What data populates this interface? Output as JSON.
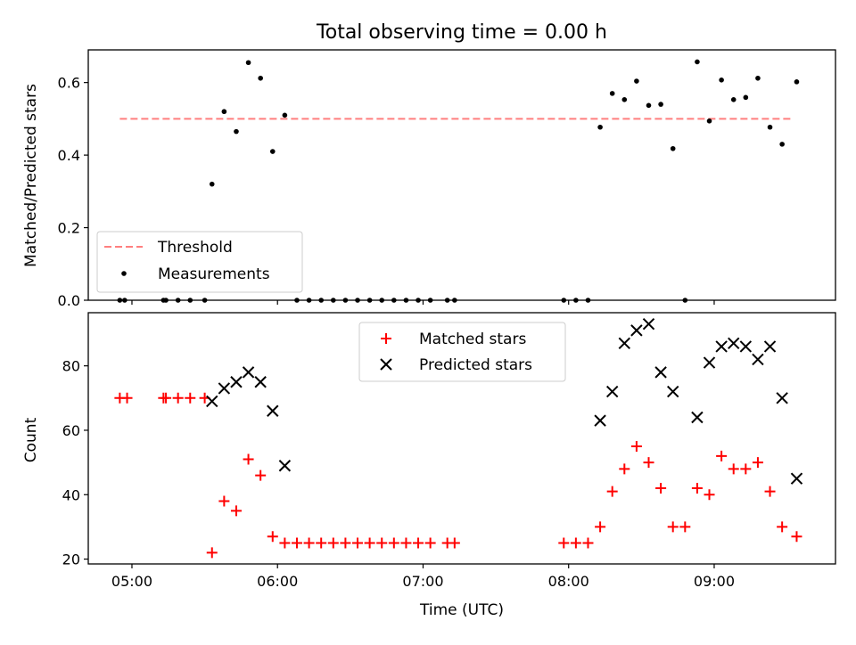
{
  "chart_data": [
    {
      "type": "scatter",
      "title": "Total observing time = 0.00 h",
      "xlabel": "",
      "ylabel": "Matched/Predicted stars",
      "ylim": [
        0.0,
        0.69
      ],
      "yticks": [
        0.0,
        0.2,
        0.4,
        0.6
      ],
      "ytick_labels": [
        "0.0",
        "0.2",
        "0.4",
        "0.6"
      ],
      "legend_placement": "lower-left",
      "threshold": {
        "name": "Threshold",
        "y": 0.5,
        "x": [
          "04:55",
          "09:32"
        ],
        "color": "#ff7f7f"
      },
      "series": [
        {
          "name": "Measurements",
          "color": "#000000",
          "points": [
            [
              "04:55",
              0.0
            ],
            [
              "04:57",
              0.0
            ],
            [
              "05:13",
              0.0
            ],
            [
              "05:14",
              0.0
            ],
            [
              "05:19",
              0.0
            ],
            [
              "05:24",
              0.0
            ],
            [
              "05:30",
              0.0
            ],
            [
              "05:33",
              0.32
            ],
            [
              "05:38",
              0.52
            ],
            [
              "05:43",
              0.465
            ],
            [
              "05:48",
              0.655
            ],
            [
              "05:53",
              0.612
            ],
            [
              "05:58",
              0.41
            ],
            [
              "06:03",
              0.51
            ],
            [
              "06:08",
              0.0
            ],
            [
              "06:13",
              0.0
            ],
            [
              "06:18",
              0.0
            ],
            [
              "06:23",
              0.0
            ],
            [
              "06:28",
              0.0
            ],
            [
              "06:33",
              0.0
            ],
            [
              "06:38",
              0.0
            ],
            [
              "06:43",
              0.0
            ],
            [
              "06:48",
              0.0
            ],
            [
              "06:53",
              0.0
            ],
            [
              "06:58",
              0.0
            ],
            [
              "07:03",
              0.0
            ],
            [
              "07:10",
              0.0
            ],
            [
              "07:13",
              0.0
            ],
            [
              "07:58",
              0.0
            ],
            [
              "08:03",
              0.0
            ],
            [
              "08:08",
              0.0
            ],
            [
              "08:13",
              0.477
            ],
            [
              "08:18",
              0.57
            ],
            [
              "08:23",
              0.553
            ],
            [
              "08:28",
              0.604
            ],
            [
              "08:33",
              0.537
            ],
            [
              "08:38",
              0.54
            ],
            [
              "08:43",
              0.418
            ],
            [
              "08:48",
              0.0
            ],
            [
              "08:53",
              0.657
            ],
            [
              "08:58",
              0.494
            ],
            [
              "09:03",
              0.607
            ],
            [
              "09:08",
              0.553
            ],
            [
              "09:13",
              0.559
            ],
            [
              "09:18",
              0.612
            ],
            [
              "09:23",
              0.477
            ],
            [
              "09:28",
              0.43
            ],
            [
              "09:34",
              0.602
            ]
          ]
        }
      ]
    },
    {
      "type": "scatter",
      "title": "",
      "xlabel": "Time (UTC)",
      "ylabel": "Count",
      "ylim": [
        18.5,
        96.5
      ],
      "yticks": [
        20,
        40,
        60,
        80
      ],
      "ytick_labels": [
        "20",
        "40",
        "60",
        "80"
      ],
      "xlim": [
        "04:42",
        "09:50"
      ],
      "xticks": [
        "05:00",
        "06:00",
        "07:00",
        "08:00",
        "09:00"
      ],
      "xtick_labels": [
        "05:00",
        "06:00",
        "07:00",
        "08:00",
        "09:00"
      ],
      "legend_placement": "upper-center",
      "series": [
        {
          "name": "Matched stars",
          "marker": "plus",
          "color": "#ff0000",
          "points": [
            [
              "04:55",
              70
            ],
            [
              "04:58",
              70
            ],
            [
              "05:13",
              70
            ],
            [
              "05:14",
              70
            ],
            [
              "05:19",
              70
            ],
            [
              "05:24",
              70
            ],
            [
              "05:30",
              70
            ],
            [
              "05:33",
              22
            ],
            [
              "05:38",
              38
            ],
            [
              "05:43",
              35
            ],
            [
              "05:48",
              51
            ],
            [
              "05:53",
              46
            ],
            [
              "05:58",
              27
            ],
            [
              "06:03",
              25
            ],
            [
              "06:08",
              25
            ],
            [
              "06:13",
              25
            ],
            [
              "06:18",
              25
            ],
            [
              "06:23",
              25
            ],
            [
              "06:28",
              25
            ],
            [
              "06:33",
              25
            ],
            [
              "06:38",
              25
            ],
            [
              "06:43",
              25
            ],
            [
              "06:48",
              25
            ],
            [
              "06:53",
              25
            ],
            [
              "06:58",
              25
            ],
            [
              "07:03",
              25
            ],
            [
              "07:10",
              25
            ],
            [
              "07:13",
              25
            ],
            [
              "07:58",
              25
            ],
            [
              "08:03",
              25
            ],
            [
              "08:08",
              25
            ],
            [
              "08:13",
              30
            ],
            [
              "08:18",
              41
            ],
            [
              "08:23",
              48
            ],
            [
              "08:28",
              55
            ],
            [
              "08:33",
              50
            ],
            [
              "08:38",
              42
            ],
            [
              "08:43",
              30
            ],
            [
              "08:48",
              30
            ],
            [
              "08:53",
              42
            ],
            [
              "08:58",
              40
            ],
            [
              "09:03",
              52
            ],
            [
              "09:08",
              48
            ],
            [
              "09:13",
              48
            ],
            [
              "09:18",
              50
            ],
            [
              "09:23",
              41
            ],
            [
              "09:28",
              30
            ],
            [
              "09:34",
              27
            ]
          ]
        },
        {
          "name": "Predicted stars",
          "marker": "x",
          "color": "#000000",
          "points": [
            [
              "05:33",
              69
            ],
            [
              "05:38",
              73
            ],
            [
              "05:43",
              75
            ],
            [
              "05:48",
              78
            ],
            [
              "05:53",
              75
            ],
            [
              "05:58",
              66
            ],
            [
              "06:03",
              49
            ],
            [
              "08:13",
              63
            ],
            [
              "08:18",
              72
            ],
            [
              "08:23",
              87
            ],
            [
              "08:28",
              91
            ],
            [
              "08:33",
              93
            ],
            [
              "08:38",
              78
            ],
            [
              "08:43",
              72
            ],
            [
              "08:53",
              64
            ],
            [
              "08:58",
              81
            ],
            [
              "09:03",
              86
            ],
            [
              "09:08",
              87
            ],
            [
              "09:13",
              86
            ],
            [
              "09:18",
              82
            ],
            [
              "09:23",
              86
            ],
            [
              "09:28",
              70
            ],
            [
              "09:34",
              45
            ]
          ]
        }
      ]
    }
  ]
}
